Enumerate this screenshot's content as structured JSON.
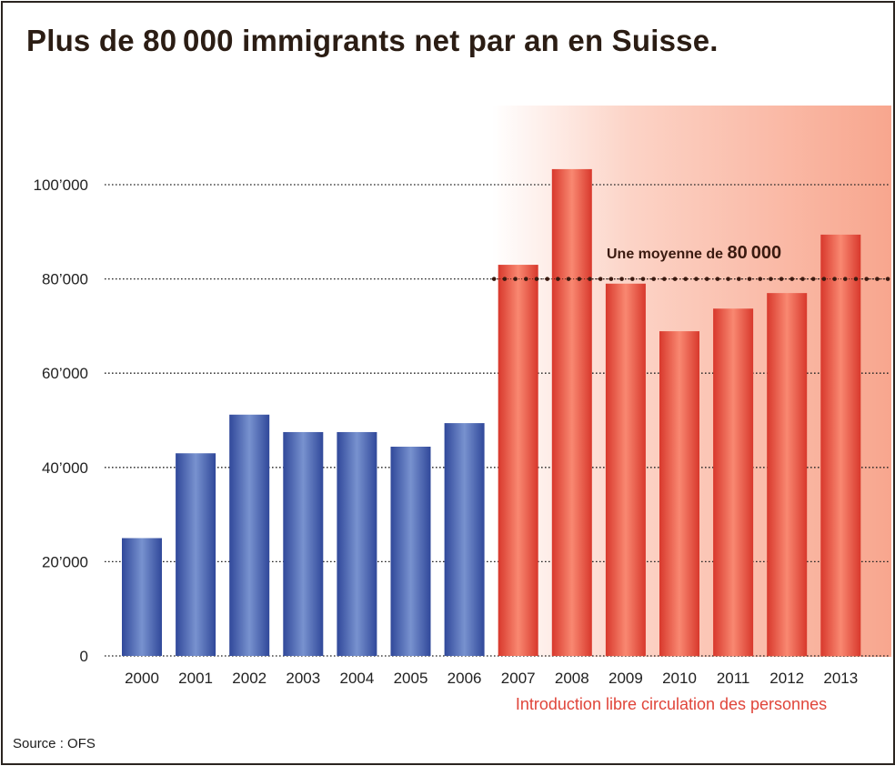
{
  "title": "Plus de 80 000 immigrants net par an en Suisse.",
  "source": "Source : OFS",
  "colors": {
    "blue": "#3a58a6",
    "red": "#e0453a",
    "band_end": "#f8a68e",
    "avg_line": "#3a1a10"
  },
  "chart_data": {
    "type": "bar",
    "title": "Plus de 80 000 immigrants net par an en Suisse.",
    "xlabel": "",
    "ylabel": "",
    "ylim": [
      0,
      110000
    ],
    "grid": true,
    "yticks": [
      0,
      20000,
      40000,
      60000,
      80000,
      100000
    ],
    "ytick_labels": [
      "0",
      "20’000",
      "40’000",
      "60’000",
      "80’000",
      "100’000"
    ],
    "categories": [
      "2000",
      "2001",
      "2002",
      "2003",
      "2004",
      "2005",
      "2006",
      "2007",
      "2008",
      "2009",
      "2010",
      "2011",
      "2012",
      "2013"
    ],
    "values": [
      25000,
      43000,
      51200,
      47500,
      47500,
      44400,
      49400,
      83000,
      103300,
      79000,
      68900,
      73700,
      77000,
      89400
    ],
    "highlight_from": "2007",
    "annotations": {
      "average_value": 80000,
      "average_label_prefix": "Une moyenne de",
      "average_label_value": "80 000",
      "period_label": "Introduction libre circulation des personnes"
    }
  }
}
